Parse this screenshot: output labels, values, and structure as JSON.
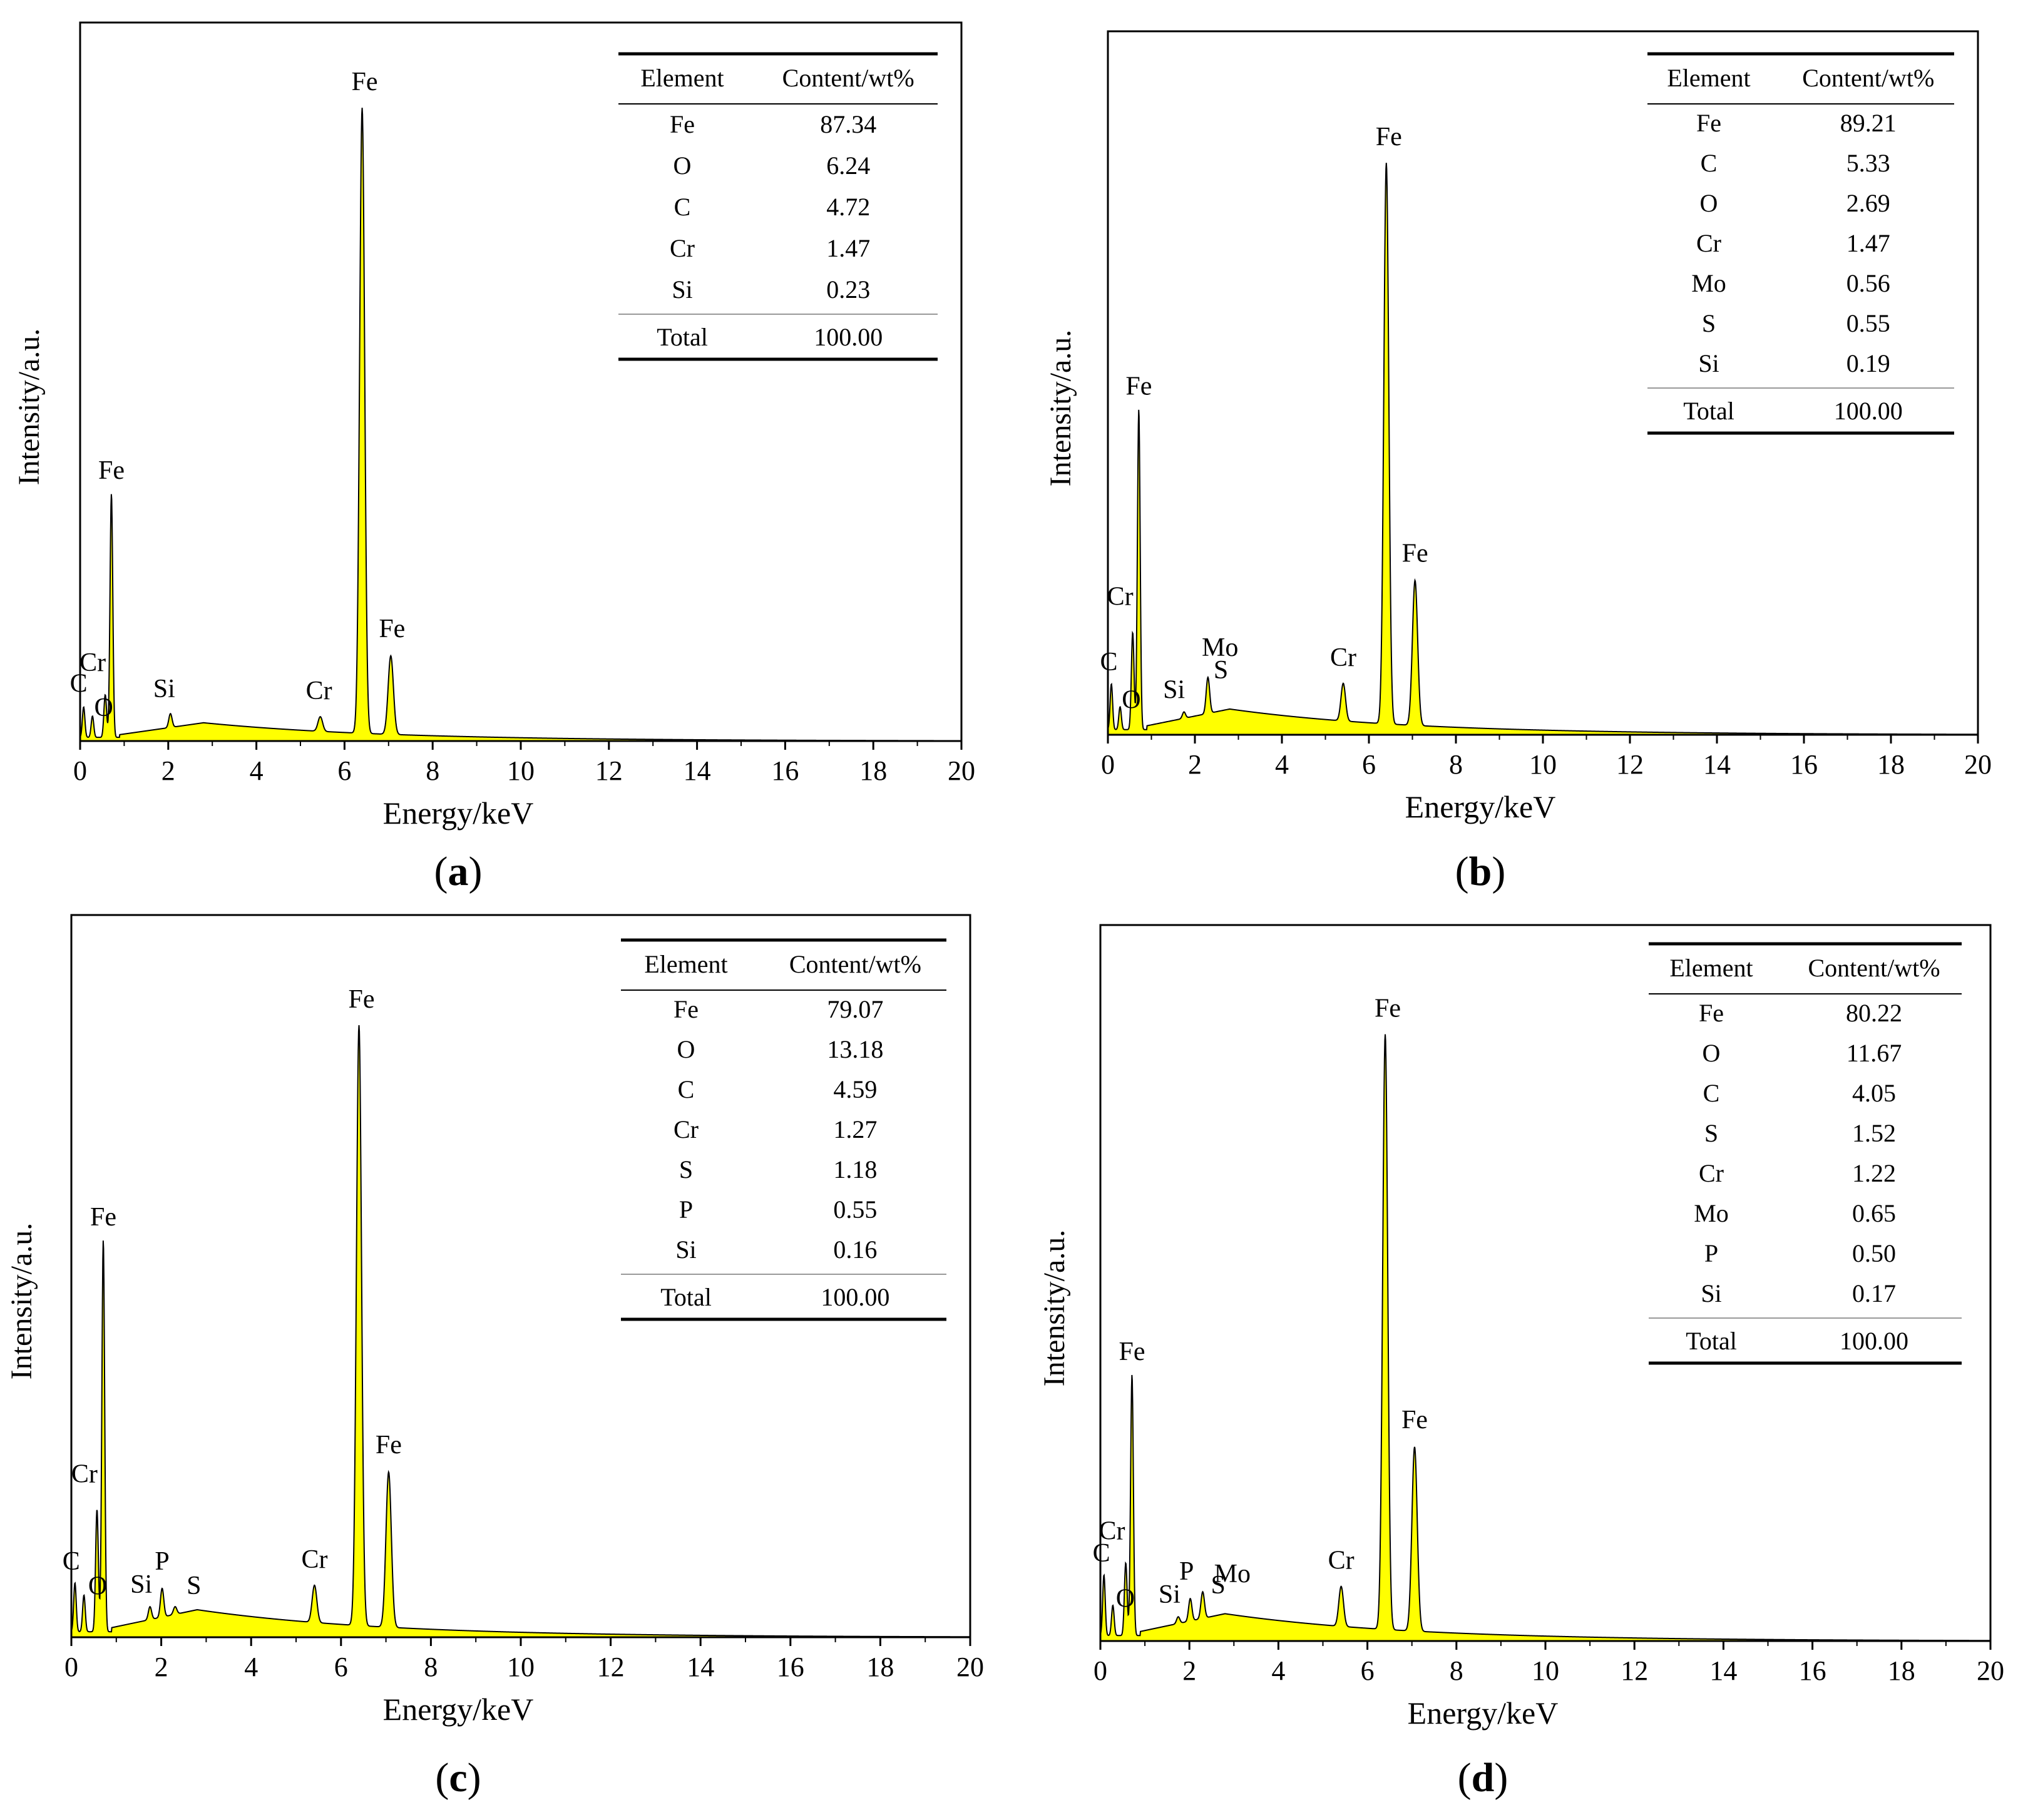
{
  "figure": {
    "x_axis_label": "Energy/keV",
    "y_axis_label": "Intensity/a.u.",
    "table_header": [
      "Element",
      "Content/wt%"
    ],
    "total_label": "Total",
    "fill_color": "#ffff00",
    "line_color": "#000000"
  },
  "chart_data": [
    {
      "type": "area",
      "panel": "a",
      "xlabel": "Energy/keV",
      "ylabel": "Intensity/a.u.",
      "xlim": [
        0,
        20
      ],
      "xticks": [
        0,
        2,
        4,
        6,
        8,
        10,
        12,
        14,
        16,
        18,
        20
      ],
      "ylim": [
        0,
        1.18
      ],
      "peaks": [
        {
          "label": "C",
          "energy": 0.08,
          "height": 0.05
        },
        {
          "label": "O",
          "energy": 0.28,
          "height": 0.035
        },
        {
          "label": "Cr",
          "energy": 0.57,
          "height": 0.07
        },
        {
          "label": "Fe",
          "energy": 0.71,
          "height": 0.4
        },
        {
          "label": "Si",
          "energy": 2.05,
          "height": 0.045
        },
        {
          "label": "Cr",
          "energy": 5.45,
          "height": 0.04
        },
        {
          "label": "Fe",
          "energy": 6.4,
          "height": 1.04
        },
        {
          "label": "Fe",
          "energy": 7.05,
          "height": 0.14
        }
      ],
      "background_level": 0.03,
      "table": [
        {
          "element": "Fe",
          "content": "87.34"
        },
        {
          "element": "O",
          "content": "6.24"
        },
        {
          "element": "C",
          "content": "4.72"
        },
        {
          "element": "Cr",
          "content": "1.47"
        },
        {
          "element": "Si",
          "content": "0.23"
        }
      ],
      "total": "100.00"
    },
    {
      "type": "area",
      "panel": "b",
      "xlabel": "Energy/keV",
      "ylabel": "Intensity/a.u.",
      "xlim": [
        0,
        20
      ],
      "xticks": [
        0,
        2,
        4,
        6,
        8,
        10,
        12,
        14,
        16,
        18,
        20
      ],
      "ylim": [
        0,
        1.23
      ],
      "peaks": [
        {
          "label": "C",
          "energy": 0.08,
          "height": 0.08
        },
        {
          "label": "O",
          "energy": 0.28,
          "height": 0.04
        },
        {
          "label": "Cr",
          "energy": 0.57,
          "height": 0.17
        },
        {
          "label": "Fe",
          "energy": 0.71,
          "height": 0.56
        },
        {
          "label": "Si",
          "energy": 1.75,
          "height": 0.04
        },
        {
          "label": "Mo",
          "energy": 2.29,
          "height": 0.07
        },
        {
          "label": "S",
          "energy": 2.31,
          "height": 0.07
        },
        {
          "label": "Cr",
          "energy": 5.41,
          "height": 0.09
        },
        {
          "label": "Fe",
          "energy": 6.4,
          "height": 1.0
        },
        {
          "label": "Fe",
          "energy": 7.06,
          "height": 0.27
        }
      ],
      "background_level": 0.045,
      "table": [
        {
          "element": "Fe",
          "content": "89.21"
        },
        {
          "element": "C",
          "content": "5.33"
        },
        {
          "element": "O",
          "content": "2.69"
        },
        {
          "element": "Cr",
          "content": "1.47"
        },
        {
          "element": "Mo",
          "content": "0.56"
        },
        {
          "element": "S",
          "content": "0.55"
        },
        {
          "element": "Si",
          "content": "0.19"
        }
      ],
      "total": "100.00"
    },
    {
      "type": "area",
      "panel": "c",
      "xlabel": "Energy/keV",
      "ylabel": "Intensity/a.u.",
      "xlim": [
        0,
        20
      ],
      "xticks": [
        0,
        2,
        4,
        6,
        8,
        10,
        12,
        14,
        16,
        18,
        20
      ],
      "ylim": [
        0,
        1.18
      ],
      "peaks": [
        {
          "label": "C",
          "energy": 0.08,
          "height": 0.08
        },
        {
          "label": "O",
          "energy": 0.28,
          "height": 0.06
        },
        {
          "label": "Cr",
          "energy": 0.57,
          "height": 0.2
        },
        {
          "label": "Fe",
          "energy": 0.71,
          "height": 0.64
        },
        {
          "label": "Si",
          "energy": 1.75,
          "height": 0.05
        },
        {
          "label": "P",
          "energy": 2.02,
          "height": 0.08
        },
        {
          "label": "S",
          "energy": 2.31,
          "height": 0.05
        },
        {
          "label": "Cr",
          "energy": 5.41,
          "height": 0.085
        },
        {
          "label": "Fe",
          "energy": 6.4,
          "height": 1.0
        },
        {
          "label": "Fe",
          "energy": 7.06,
          "height": 0.27
        }
      ],
      "background_level": 0.045,
      "table": [
        {
          "element": "Fe",
          "content": "79.07"
        },
        {
          "element": "O",
          "content": "13.18"
        },
        {
          "element": "C",
          "content": "4.59"
        },
        {
          "element": "Cr",
          "content": "1.27"
        },
        {
          "element": "S",
          "content": "1.18"
        },
        {
          "element": "P",
          "content": "0.55"
        },
        {
          "element": "Si",
          "content": "0.16"
        }
      ],
      "total": "100.00"
    },
    {
      "type": "area",
      "panel": "d",
      "xlabel": "Energy/keV",
      "ylabel": "Intensity/a.u.",
      "xlim": [
        0,
        20
      ],
      "xticks": [
        0,
        2,
        4,
        6,
        8,
        10,
        12,
        14,
        16,
        18,
        20
      ],
      "ylim": [
        0,
        1.18
      ],
      "peaks": [
        {
          "label": "C",
          "energy": 0.08,
          "height": 0.1
        },
        {
          "label": "O",
          "energy": 0.28,
          "height": 0.05
        },
        {
          "label": "Cr",
          "energy": 0.57,
          "height": 0.12
        },
        {
          "label": "Fe",
          "energy": 0.71,
          "height": 0.43
        },
        {
          "label": "Si",
          "energy": 1.75,
          "height": 0.04
        },
        {
          "label": "P",
          "energy": 2.02,
          "height": 0.07
        },
        {
          "label": "S",
          "energy": 2.31,
          "height": 0.06
        },
        {
          "label": "Mo",
          "energy": 2.29,
          "height": 0.06
        },
        {
          "label": "Cr",
          "energy": 5.41,
          "height": 0.09
        },
        {
          "label": "Fe",
          "energy": 6.4,
          "height": 1.0
        },
        {
          "label": "Fe",
          "energy": 7.06,
          "height": 0.32
        }
      ],
      "background_level": 0.045,
      "table": [
        {
          "element": "Fe",
          "content": "80.22"
        },
        {
          "element": "O",
          "content": "11.67"
        },
        {
          "element": "C",
          "content": "4.05"
        },
        {
          "element": "S",
          "content": "1.52"
        },
        {
          "element": "Cr",
          "content": "1.22"
        },
        {
          "element": "Mo",
          "content": "0.65"
        },
        {
          "element": "P",
          "content": "0.50"
        },
        {
          "element": "Si",
          "content": "0.17"
        }
      ],
      "total": "100.00"
    }
  ]
}
